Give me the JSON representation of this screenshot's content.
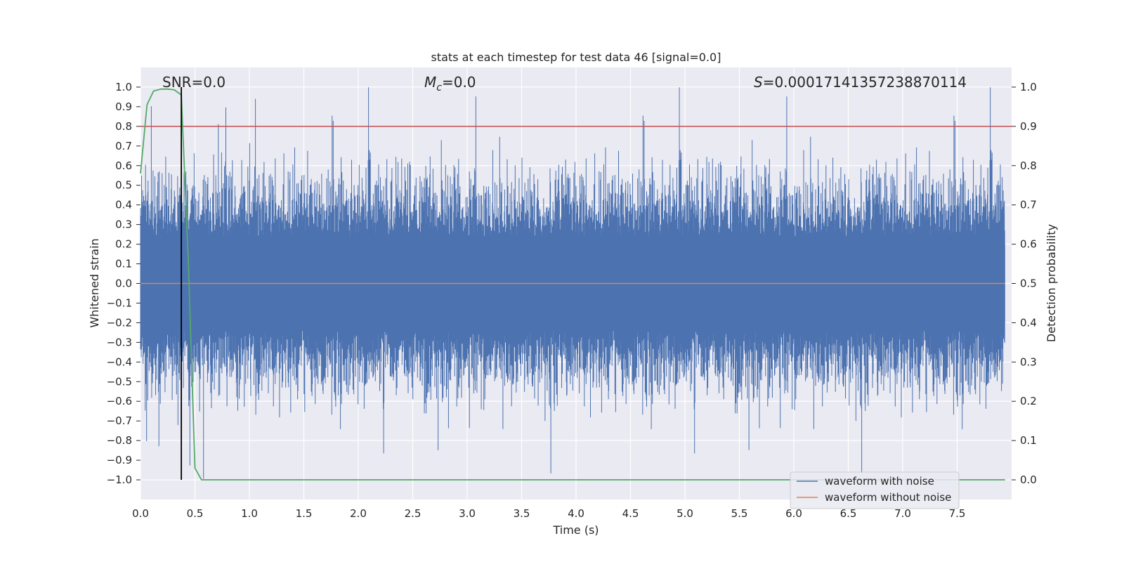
{
  "chart_data": {
    "type": "line",
    "title": "stats at each timestep for test data 46 [signal=0.0]",
    "xlabel": "Time (s)",
    "ylabel_left": "Whitened strain",
    "ylabel_right": "Detection probability",
    "xlim": [
      0.0,
      8.0
    ],
    "ylim_left": [
      -1.1,
      1.1
    ],
    "ylim_right": [
      -0.05,
      1.05
    ],
    "xticks": [
      "0.0",
      "0.5",
      "1.0",
      "1.5",
      "2.0",
      "2.5",
      "3.0",
      "3.5",
      "4.0",
      "4.5",
      "5.0",
      "5.5",
      "6.0",
      "6.5",
      "7.0",
      "7.5"
    ],
    "yticks_left": [
      "1.0",
      "0.9",
      "0.8",
      "0.7",
      "0.6",
      "0.5",
      "0.4",
      "0.3",
      "0.2",
      "0.1",
      "0.0",
      "−0.1",
      "−0.2",
      "−0.3",
      "−0.4",
      "−0.5",
      "−0.6",
      "−0.7",
      "−0.8",
      "−0.9",
      "−1.0"
    ],
    "yticks_right": [
      "1.0",
      "0.9",
      "0.8",
      "0.7",
      "0.6",
      "0.5",
      "0.4",
      "0.3",
      "0.2",
      "0.1",
      "0.0"
    ],
    "annotations": {
      "snr": "SNR=0.0",
      "mc_symbol": "M",
      "mc_sub": "c",
      "mc_value": "=0.0",
      "s_symbol": "S",
      "s_value": "=0.00017141357238870114"
    },
    "threshold_line": {
      "y": 0.9,
      "color": "#c44e52"
    },
    "vertical_marker": {
      "x": 0.375,
      "color": "#000000"
    },
    "series": [
      {
        "name": "waveform with noise",
        "color": "#4c72b0",
        "axis": "left",
        "envelope_typical": 0.45,
        "envelope_peak": 1.0
      },
      {
        "name": "waveform without noise",
        "color": "#dd8452",
        "axis": "left",
        "value": 0.0
      },
      {
        "name": "detection probability",
        "color": "#55a868",
        "axis": "right",
        "x": [
          0.0,
          0.06,
          0.12,
          0.19,
          0.25,
          0.31,
          0.375,
          0.44,
          0.5,
          0.56,
          0.62,
          1.0,
          2.0,
          3.0,
          4.0,
          5.0,
          6.0,
          7.0,
          7.94
        ],
        "values": [
          0.78,
          0.955,
          0.99,
          0.995,
          0.995,
          0.993,
          0.98,
          0.55,
          0.03,
          0.0,
          0.0,
          0.0,
          0.0,
          0.0,
          0.0,
          0.0,
          0.0,
          0.0,
          0.0
        ]
      }
    ],
    "legend": [
      "waveform with noise",
      "waveform without noise"
    ]
  }
}
